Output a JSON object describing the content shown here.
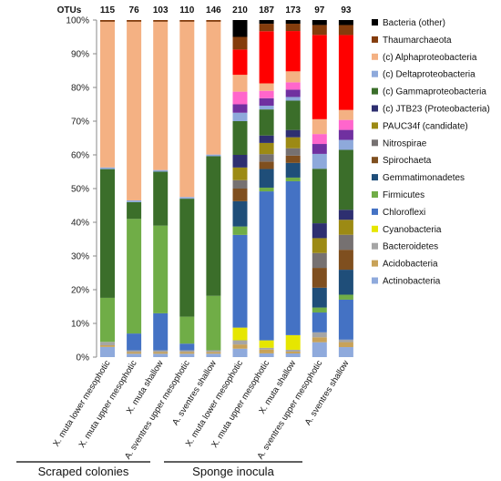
{
  "chart_data": {
    "type": "bar",
    "stacked": true,
    "normalized": true,
    "ylim": [
      0,
      100
    ],
    "yticks": [
      "0%",
      "10%",
      "20%",
      "30%",
      "40%",
      "50%",
      "60%",
      "70%",
      "80%",
      "90%",
      "100%"
    ],
    "otu_label": "OTUs",
    "otu_counts": [
      115,
      76,
      103,
      110,
      146,
      210,
      187,
      173,
      97,
      93
    ],
    "categories": [
      "X. muta lower mesophotic",
      "X. muta upper mesophotic",
      "X. muta shallow",
      "A. sventres upper mesophotic",
      "A. sventres shallow",
      "X. muta lower mesophotic",
      "X. muta upper mesophotic",
      "X. muta shallow",
      "A. sventres upper mesophotic",
      "A. sventres shallow"
    ],
    "groups": [
      {
        "label": "Scraped colonies",
        "start": 0,
        "end": 4
      },
      {
        "label": "Sponge inocula",
        "start": 5,
        "end": 9
      }
    ],
    "series": [
      {
        "name": "Actinobacteria",
        "color": "#8FAADC",
        "values": [
          3,
          1,
          1,
          1,
          1,
          2,
          1,
          1,
          3,
          2
        ]
      },
      {
        "name": "Acidobacteria",
        "color": "#C8A258",
        "values": [
          0.5,
          0.5,
          0.5,
          0.5,
          0.5,
          1,
          1,
          0.5,
          1,
          1
        ]
      },
      {
        "name": "Bacteroidetes",
        "color": "#A5A5A5",
        "values": [
          1,
          0.5,
          0.5,
          0.5,
          0.5,
          1,
          0.5,
          0.5,
          1,
          0.5
        ]
      },
      {
        "name": "Cyanobacteria",
        "color": "#E6E600",
        "values": [
          0,
          0,
          0,
          0,
          0,
          3,
          2,
          4,
          0,
          0
        ]
      },
      {
        "name": "Chloroflexi",
        "color": "#4472C4",
        "values": [
          0,
          5,
          11,
          2,
          0,
          22,
          40,
          42,
          4,
          8
        ]
      },
      {
        "name": "Firmicutes",
        "color": "#70AD47",
        "values": [
          13,
          34,
          26,
          8,
          16,
          2,
          1,
          1,
          1,
          1
        ]
      },
      {
        "name": "Gemmatimonadetes",
        "color": "#1F4E79",
        "values": [
          0,
          0,
          0,
          0,
          0,
          6,
          5,
          4,
          4,
          5
        ]
      },
      {
        "name": "Spirochaeta",
        "color": "#7F4F1F",
        "values": [
          0,
          0,
          0,
          0,
          0,
          3,
          2,
          2,
          4,
          4
        ]
      },
      {
        "name": "Nitrospirae",
        "color": "#767171",
        "values": [
          0,
          0,
          0,
          0,
          0,
          2,
          2,
          2,
          3,
          3
        ]
      },
      {
        "name": "PAUC34f (candidate)",
        "color": "#9C8A14",
        "values": [
          0,
          0,
          0,
          0,
          0,
          3,
          3,
          3,
          3,
          3
        ]
      },
      {
        "name": "(c) JTB23 (Proteobacteria)",
        "color": "#2E2F70",
        "values": [
          0,
          0,
          0,
          0,
          0,
          3,
          2,
          2,
          3,
          2
        ]
      },
      {
        "name": "(c) Gammaproteobacteria",
        "color": "#3B6E2A",
        "values": [
          38,
          5,
          16,
          35,
          41,
          8,
          7,
          8,
          11,
          12
        ]
      },
      {
        "name": "(c) Deltaproteobacteria",
        "color": "#8EA9DB",
        "values": [
          0.5,
          0.5,
          0.5,
          0.5,
          0.5,
          2,
          1,
          1,
          3,
          2
        ]
      },
      {
        "name": "(c) Alphaproteobacteria",
        "color": "#F4B183",
        "values": [
          43,
          53,
          44,
          52,
          39,
          4,
          2,
          3,
          3,
          2
        ]
      },
      {
        "name": "Thaumarchaeota",
        "color": "#843C0C",
        "values": [
          0.5,
          0.5,
          0.5,
          0.5,
          0.5,
          3,
          2,
          2,
          2,
          2
        ]
      },
      {
        "name": "Bacteria (other)",
        "color": "#000000",
        "values": [
          0,
          0,
          0,
          0,
          0,
          4,
          1,
          1,
          1,
          1
        ]
      }
    ],
    "extra_segments": [
      {
        "color": "#FF0000",
        "values": [
          0,
          0,
          0,
          0,
          0,
          6,
          14,
          11,
          17,
          15
        ]
      },
      {
        "color": "#FF66CC",
        "values": [
          0,
          0,
          0,
          0,
          0,
          3,
          2,
          2,
          2,
          2
        ]
      },
      {
        "color": "#7030A0",
        "values": [
          0,
          0,
          0,
          0,
          0,
          2,
          2,
          2,
          2,
          2
        ]
      }
    ]
  }
}
